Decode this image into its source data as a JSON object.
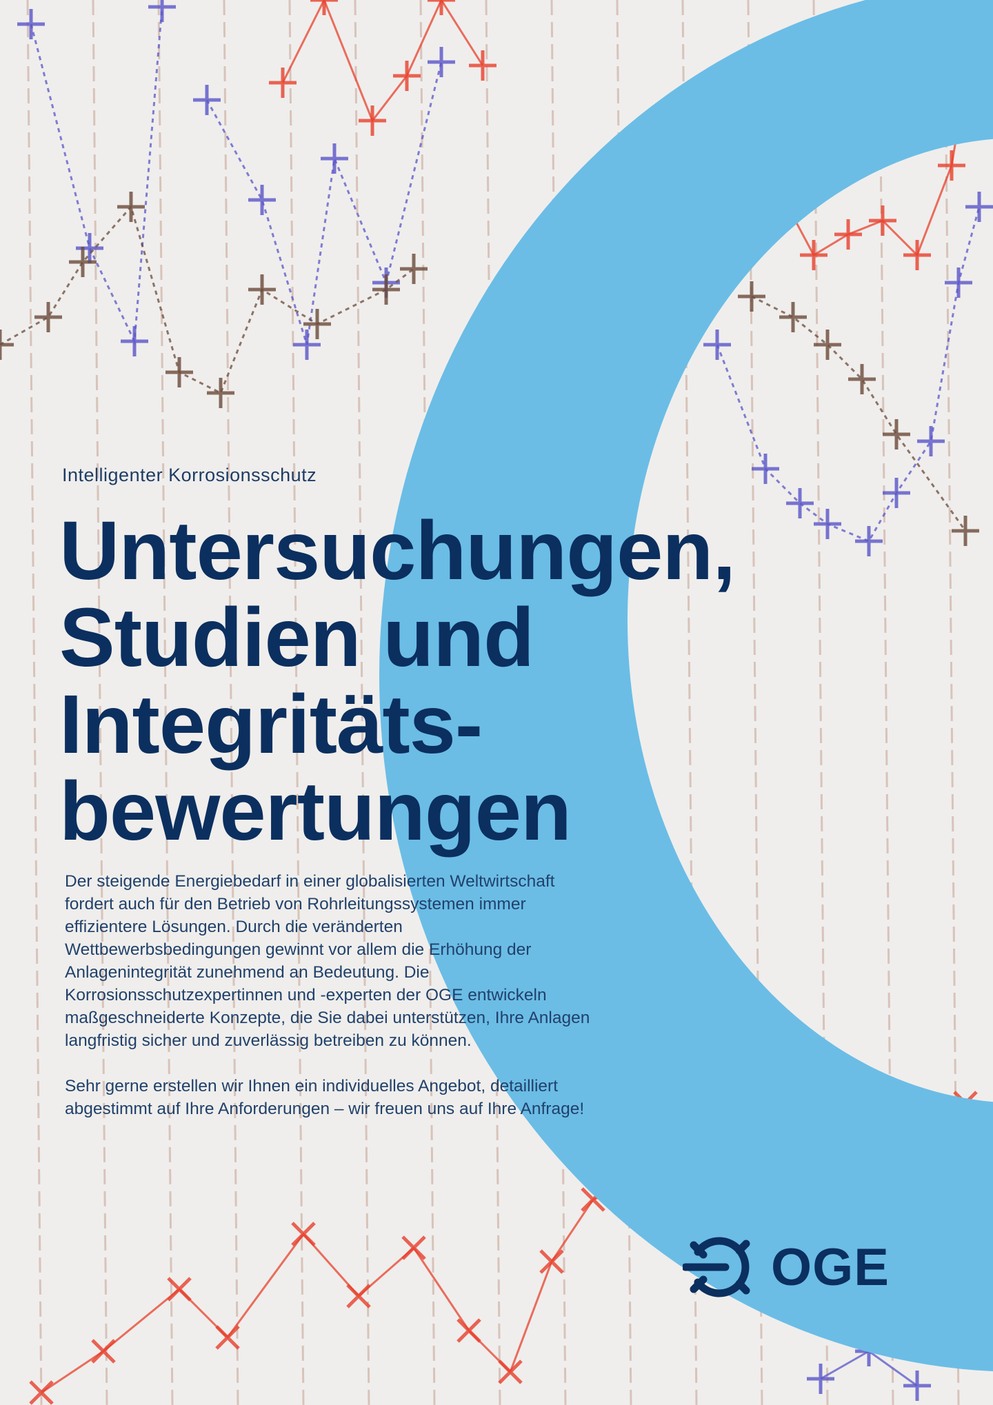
{
  "kicker": "Intelligenter Korrosionsschutz",
  "title_lines": [
    "Untersuchungen,",
    "Studien und",
    "Integritäts-",
    "bewertungen"
  ],
  "body_paragraphs": [
    "Der steigende Energiebedarf in einer globalisierten Weltwirtschaft fordert auch für den Betrieb von Rohr­leitungssystemen immer effizientere Lösungen. Durch die veränderten Wettbewerbsbedingungen gewinnt vor allem die Erhöhung der Anlagenintegrität zuneh­mend an Bedeutung. Die Korrosionsschutzexpertinnen und -experten der OGE entwickeln maßgeschneiderte Konzepte, die Sie dabei unterstützen, Ihre Anlagen langfristig sicher und zuverlässig betreiben zu können.",
    "Sehr gerne erstellen wir Ihnen ein individuelles Angebot, detailliert abgestimmt auf Ihre Anforde­rungen – wir freuen uns auf Ihre Anfrage!"
  ],
  "logo": {
    "text": "OGE",
    "icon": "oge-logo-icon"
  },
  "colors": {
    "navy": "#0b2f5f",
    "ring_blue": "#6bbde6",
    "red": "#e8402c",
    "purple": "#5a55c8",
    "brown": "#6b4a3a"
  }
}
